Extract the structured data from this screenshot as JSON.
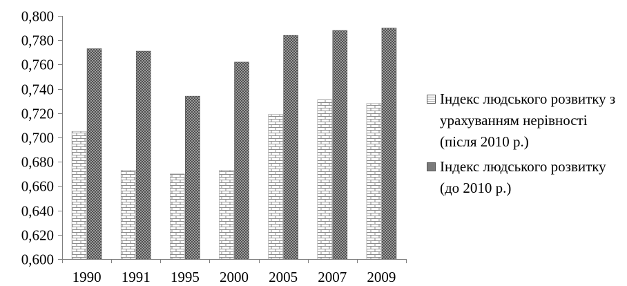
{
  "chart_data": {
    "type": "bar",
    "categories": [
      "1990",
      "1991",
      "1995",
      "2000",
      "2005",
      "2007",
      "2009"
    ],
    "series": [
      {
        "name": "Індекс людського розвитку з урахуванням нерівності (після 2010 р.)",
        "values": [
          0.705,
          0.673,
          0.67,
          0.673,
          0.719,
          0.731,
          0.728
        ],
        "pattern": "brick",
        "color": "#c8c8c8"
      },
      {
        "name": "Індекс людського розвитку (до 2010 р.)",
        "values": [
          0.773,
          0.771,
          0.734,
          0.762,
          0.784,
          0.788,
          0.79
        ],
        "pattern": "crosshatch",
        "color": "#808080"
      }
    ],
    "yticks": [
      "0,600",
      "0,620",
      "0,640",
      "0,660",
      "0,680",
      "0,700",
      "0,720",
      "0,740",
      "0,760",
      "0,780",
      "0,800"
    ],
    "ylim": [
      0.6,
      0.8
    ],
    "title": "",
    "xlabel": "",
    "ylabel": "",
    "grid": false,
    "legend": "right"
  }
}
